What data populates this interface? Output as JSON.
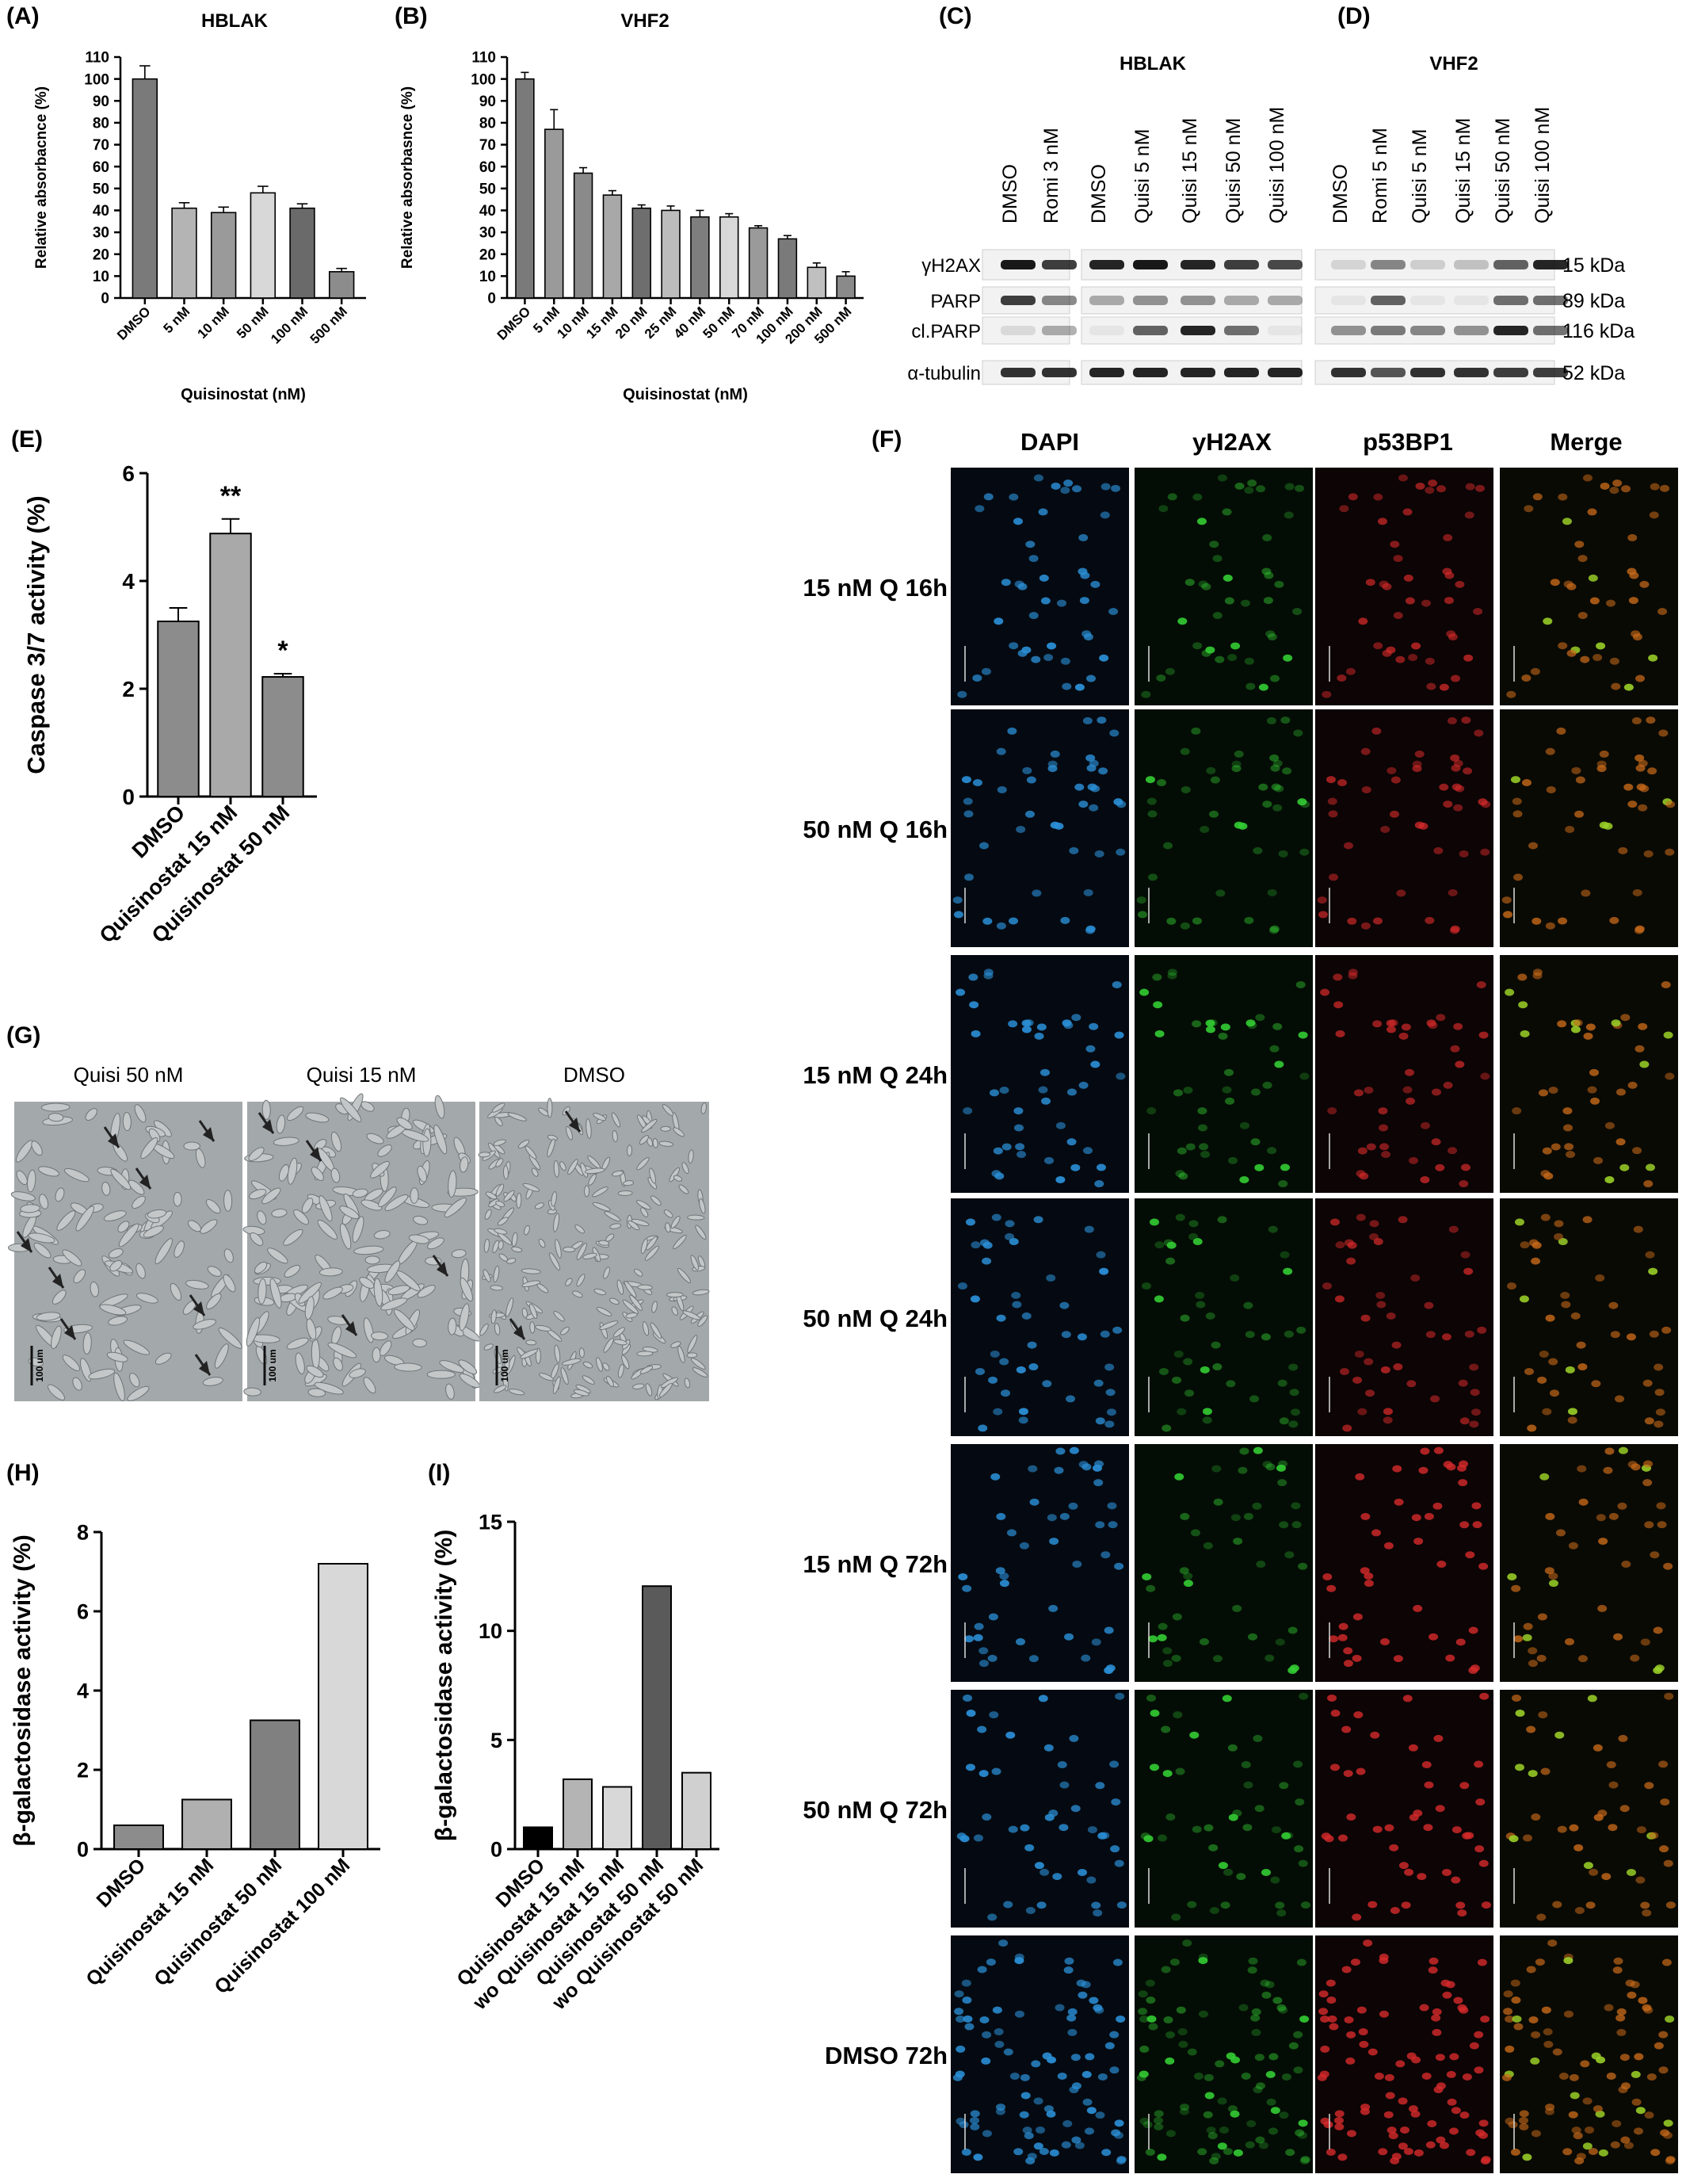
{
  "figure": {
    "labels": {
      "A": "(A)",
      "B": "(B)",
      "C": "(C)",
      "D": "(D)",
      "E": "(E)",
      "F": "(F)",
      "G": "(G)",
      "H": "(H)",
      "I": "(I)"
    }
  },
  "chart_data": [
    {
      "id": "A",
      "type": "bar",
      "title": "HBLAK",
      "xlabel": "Quisinostat (nM)",
      "ylabel": "Relative absorbacnce (%)",
      "categories": [
        "DMSO",
        "5 nM",
        "10 nM",
        "50 nM",
        "100 nM",
        "500 nM"
      ],
      "values": [
        100,
        41,
        39,
        48,
        41,
        12
      ],
      "errors": [
        6,
        2.5,
        2.5,
        3,
        2,
        1.5
      ],
      "colors": [
        "#7a7a7a",
        "#b4b4b4",
        "#9a9a9a",
        "#d8d8d8",
        "#6a6a6a",
        "#8c8c8c"
      ],
      "ylim": [
        0,
        110
      ],
      "yticks": [
        0,
        10,
        20,
        30,
        40,
        50,
        60,
        70,
        80,
        90,
        100,
        110
      ]
    },
    {
      "id": "B",
      "type": "bar",
      "title": "VHF2",
      "xlabel": "Quisinostat (nM)",
      "ylabel": "Relative absorbasnce (%)",
      "categories": [
        "DMSO",
        "5 nM",
        "10 nM",
        "15 nM",
        "20 nM",
        "25 nM",
        "40 nM",
        "50 nM",
        "70 nM",
        "100 nM",
        "200 nM",
        "500 nM"
      ],
      "values": [
        100,
        77,
        57,
        47,
        41,
        40,
        37,
        37,
        32,
        27,
        14,
        10
      ],
      "errors": [
        3,
        9,
        2.5,
        2,
        1.5,
        2,
        3,
        1.5,
        1,
        1.5,
        2,
        2
      ],
      "colors": [
        "#7a7a7a",
        "#9a9a9a",
        "#8a8a8a",
        "#a8a8a8",
        "#6e6e6e",
        "#bcbcbc",
        "#7e7e7e",
        "#d8d8d8",
        "#9a9a9a",
        "#7a7a7a",
        "#c0c0c0",
        "#8a8a8a"
      ],
      "ylim": [
        0,
        110
      ],
      "yticks": [
        0,
        10,
        20,
        30,
        40,
        50,
        60,
        70,
        80,
        90,
        100,
        110
      ]
    },
    {
      "id": "E",
      "type": "bar",
      "xlabel": "",
      "ylabel": "Caspase 3/7 activity (%)",
      "categories": [
        "DMSO",
        "Quisinostat 15 nM",
        "Quisinostat 50 nM"
      ],
      "values": [
        3.25,
        4.88,
        2.22
      ],
      "errors": [
        0.25,
        0.27,
        0.06
      ],
      "significance": [
        "",
        "**",
        "*"
      ],
      "colors": [
        "#8c8c8c",
        "#a9a9a9",
        "#8c8c8c"
      ],
      "ylim": [
        0,
        6
      ],
      "yticks": [
        0,
        2,
        4,
        6
      ]
    },
    {
      "id": "H",
      "type": "bar",
      "xlabel": "",
      "ylabel": "β-galactosidase activity (%)",
      "categories": [
        "DMSO",
        "Quisinostat 15 nM",
        "Quisinostat 50 nM",
        "Quisinostat 100 nM"
      ],
      "values": [
        0.6,
        1.25,
        3.25,
        7.2
      ],
      "colors": [
        "#8c8c8c",
        "#b0b0b0",
        "#808080",
        "#d8d8d8"
      ],
      "ylim": [
        0,
        8
      ],
      "yticks": [
        0,
        2,
        4,
        6,
        8
      ]
    },
    {
      "id": "I",
      "type": "bar",
      "xlabel": "",
      "ylabel": "β-galactosidase activity (%)",
      "categories": [
        "DMSO",
        "Quisinostat 15 nM",
        "wo Quisinostat 15 nM",
        "Quisinostat 50 nM",
        "wo Quisinostat 50 nM"
      ],
      "values": [
        1.0,
        3.2,
        2.85,
        12.05,
        3.5
      ],
      "colors": [
        "#000000",
        "#b4b4b4",
        "#d8d8d8",
        "#5a5a5a",
        "#d0d0d0"
      ],
      "ylim": [
        0,
        15
      ],
      "yticks": [
        0,
        5,
        10,
        15
      ]
    }
  ],
  "blot": {
    "C_title": "HBLAK",
    "D_title": "VHF2",
    "C_lanes_a": [
      "DMSO",
      "Romi 3 nM"
    ],
    "C_lanes_b": [
      "DMSO",
      "Quisi 5 nM",
      "Quisi 15 nM",
      "Quisi 50 nM",
      "Quisi 100 nM"
    ],
    "D_lanes": [
      "DMSO",
      "Romi 5 nM",
      "Quisi 5 nM",
      "Quisi 15 nM",
      "Quisi 50 nM",
      "Quisi 100 nM"
    ],
    "rows": [
      "γH2AX",
      "PARP",
      "cl.PARP",
      "α-tubulin"
    ],
    "sizes": [
      "15 kDa",
      "89 kDa",
      "116 kDa",
      "52 kDa"
    ]
  },
  "panelF": {
    "columns": [
      "DAPI",
      "yH2AX",
      "p53BP1",
      "Merge"
    ],
    "rows": [
      "15 nM Q 16h",
      "50 nM Q 16h",
      "15 nM Q 24h",
      "50 nM Q 24h",
      "15 nM Q 72h",
      "50 nM Q 72h",
      "DMSO 72h"
    ]
  },
  "panelG": {
    "columns": [
      "Quisi 50 nM",
      "Quisi 15 nM",
      "DMSO"
    ],
    "scalebar": "100 um"
  }
}
